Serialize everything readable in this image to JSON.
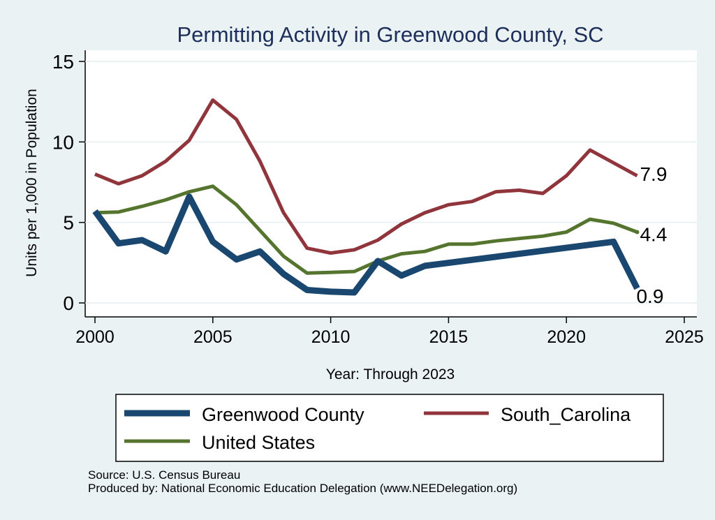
{
  "chart_data": {
    "type": "line",
    "title": "Permitting Activity in Greenwood County, SC",
    "xlabel": "Year: Through 2023",
    "ylabel": "Units per 1,000 in Population",
    "xlim": [
      2000,
      2025
    ],
    "ylim": [
      0,
      15
    ],
    "xticks": [
      2000,
      2005,
      2010,
      2015,
      2020,
      2025
    ],
    "yticks": [
      0,
      5,
      10,
      15
    ],
    "grid": true,
    "legend_position": "bottom",
    "x": [
      2000,
      2001,
      2002,
      2003,
      2004,
      2005,
      2006,
      2007,
      2008,
      2009,
      2010,
      2011,
      2012,
      2013,
      2014,
      2015,
      2016,
      2017,
      2018,
      2019,
      2020,
      2021,
      2022,
      2023
    ],
    "series": [
      {
        "name": "Greenwood County",
        "color": "#1a476f",
        "values": [
          5.7,
          3.7,
          3.9,
          3.2,
          6.6,
          3.8,
          2.7,
          3.2,
          1.8,
          0.8,
          0.7,
          0.65,
          2.6,
          1.7,
          2.3,
          null,
          null,
          null,
          null,
          null,
          null,
          null,
          3.8,
          0.9
        ],
        "end_label": "0.9"
      },
      {
        "name": "South_Carolina",
        "color": "#90353b",
        "values": [
          8.0,
          7.4,
          7.9,
          8.8,
          10.1,
          12.6,
          11.4,
          8.8,
          5.6,
          3.4,
          3.1,
          3.3,
          3.9,
          4.9,
          5.6,
          6.1,
          6.3,
          6.9,
          7.0,
          6.8,
          7.9,
          9.5,
          8.7,
          7.9
        ],
        "end_label": "7.9"
      },
      {
        "name": "United States",
        "color": "#55752f",
        "values": [
          5.6,
          5.65,
          6.0,
          6.4,
          6.9,
          7.25,
          6.1,
          4.5,
          2.9,
          1.85,
          1.9,
          1.95,
          2.6,
          3.05,
          3.2,
          3.65,
          3.65,
          3.85,
          4.0,
          4.15,
          4.4,
          5.2,
          4.95,
          4.4
        ],
        "end_label": "4.4"
      }
    ]
  },
  "notes": {
    "source": "Source: U.S. Census Bureau",
    "produced_by": "Produced by: National Economic Education Delegation (www.NEEDelegation.org)"
  }
}
